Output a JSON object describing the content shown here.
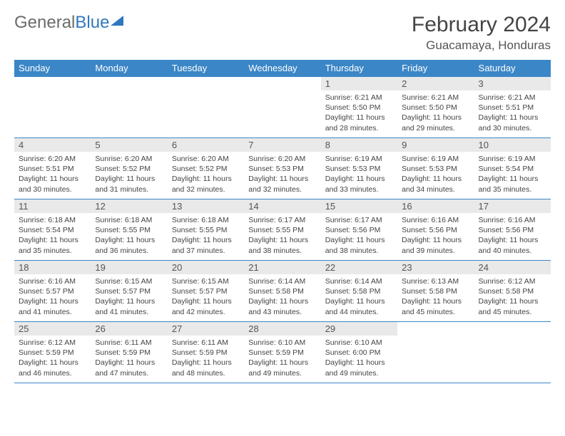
{
  "logo": {
    "part1": "General",
    "part2": "Blue"
  },
  "title": "February 2024",
  "location": "Guacamaya, Honduras",
  "weekdays": [
    "Sunday",
    "Monday",
    "Tuesday",
    "Wednesday",
    "Thursday",
    "Friday",
    "Saturday"
  ],
  "colors": {
    "header_bg": "#3b86c6",
    "header_text": "#ffffff",
    "daynum_bg": "#e9e9e9",
    "border": "#3b86c6",
    "logo_gray": "#6b6b6b",
    "logo_blue": "#2f78bd"
  },
  "first_weekday_index": 4,
  "days": [
    {
      "n": 1,
      "sunrise": "6:21 AM",
      "sunset": "5:50 PM",
      "daylight": "11 hours and 28 minutes."
    },
    {
      "n": 2,
      "sunrise": "6:21 AM",
      "sunset": "5:50 PM",
      "daylight": "11 hours and 29 minutes."
    },
    {
      "n": 3,
      "sunrise": "6:21 AM",
      "sunset": "5:51 PM",
      "daylight": "11 hours and 30 minutes."
    },
    {
      "n": 4,
      "sunrise": "6:20 AM",
      "sunset": "5:51 PM",
      "daylight": "11 hours and 30 minutes."
    },
    {
      "n": 5,
      "sunrise": "6:20 AM",
      "sunset": "5:52 PM",
      "daylight": "11 hours and 31 minutes."
    },
    {
      "n": 6,
      "sunrise": "6:20 AM",
      "sunset": "5:52 PM",
      "daylight": "11 hours and 32 minutes."
    },
    {
      "n": 7,
      "sunrise": "6:20 AM",
      "sunset": "5:53 PM",
      "daylight": "11 hours and 32 minutes."
    },
    {
      "n": 8,
      "sunrise": "6:19 AM",
      "sunset": "5:53 PM",
      "daylight": "11 hours and 33 minutes."
    },
    {
      "n": 9,
      "sunrise": "6:19 AM",
      "sunset": "5:53 PM",
      "daylight": "11 hours and 34 minutes."
    },
    {
      "n": 10,
      "sunrise": "6:19 AM",
      "sunset": "5:54 PM",
      "daylight": "11 hours and 35 minutes."
    },
    {
      "n": 11,
      "sunrise": "6:18 AM",
      "sunset": "5:54 PM",
      "daylight": "11 hours and 35 minutes."
    },
    {
      "n": 12,
      "sunrise": "6:18 AM",
      "sunset": "5:55 PM",
      "daylight": "11 hours and 36 minutes."
    },
    {
      "n": 13,
      "sunrise": "6:18 AM",
      "sunset": "5:55 PM",
      "daylight": "11 hours and 37 minutes."
    },
    {
      "n": 14,
      "sunrise": "6:17 AM",
      "sunset": "5:55 PM",
      "daylight": "11 hours and 38 minutes."
    },
    {
      "n": 15,
      "sunrise": "6:17 AM",
      "sunset": "5:56 PM",
      "daylight": "11 hours and 38 minutes."
    },
    {
      "n": 16,
      "sunrise": "6:16 AM",
      "sunset": "5:56 PM",
      "daylight": "11 hours and 39 minutes."
    },
    {
      "n": 17,
      "sunrise": "6:16 AM",
      "sunset": "5:56 PM",
      "daylight": "11 hours and 40 minutes."
    },
    {
      "n": 18,
      "sunrise": "6:16 AM",
      "sunset": "5:57 PM",
      "daylight": "11 hours and 41 minutes."
    },
    {
      "n": 19,
      "sunrise": "6:15 AM",
      "sunset": "5:57 PM",
      "daylight": "11 hours and 41 minutes."
    },
    {
      "n": 20,
      "sunrise": "6:15 AM",
      "sunset": "5:57 PM",
      "daylight": "11 hours and 42 minutes."
    },
    {
      "n": 21,
      "sunrise": "6:14 AM",
      "sunset": "5:58 PM",
      "daylight": "11 hours and 43 minutes."
    },
    {
      "n": 22,
      "sunrise": "6:14 AM",
      "sunset": "5:58 PM",
      "daylight": "11 hours and 44 minutes."
    },
    {
      "n": 23,
      "sunrise": "6:13 AM",
      "sunset": "5:58 PM",
      "daylight": "11 hours and 45 minutes."
    },
    {
      "n": 24,
      "sunrise": "6:12 AM",
      "sunset": "5:58 PM",
      "daylight": "11 hours and 45 minutes."
    },
    {
      "n": 25,
      "sunrise": "6:12 AM",
      "sunset": "5:59 PM",
      "daylight": "11 hours and 46 minutes."
    },
    {
      "n": 26,
      "sunrise": "6:11 AM",
      "sunset": "5:59 PM",
      "daylight": "11 hours and 47 minutes."
    },
    {
      "n": 27,
      "sunrise": "6:11 AM",
      "sunset": "5:59 PM",
      "daylight": "11 hours and 48 minutes."
    },
    {
      "n": 28,
      "sunrise": "6:10 AM",
      "sunset": "5:59 PM",
      "daylight": "11 hours and 49 minutes."
    },
    {
      "n": 29,
      "sunrise": "6:10 AM",
      "sunset": "6:00 PM",
      "daylight": "11 hours and 49 minutes."
    }
  ],
  "labels": {
    "sunrise": "Sunrise:",
    "sunset": "Sunset:",
    "daylight": "Daylight:"
  }
}
